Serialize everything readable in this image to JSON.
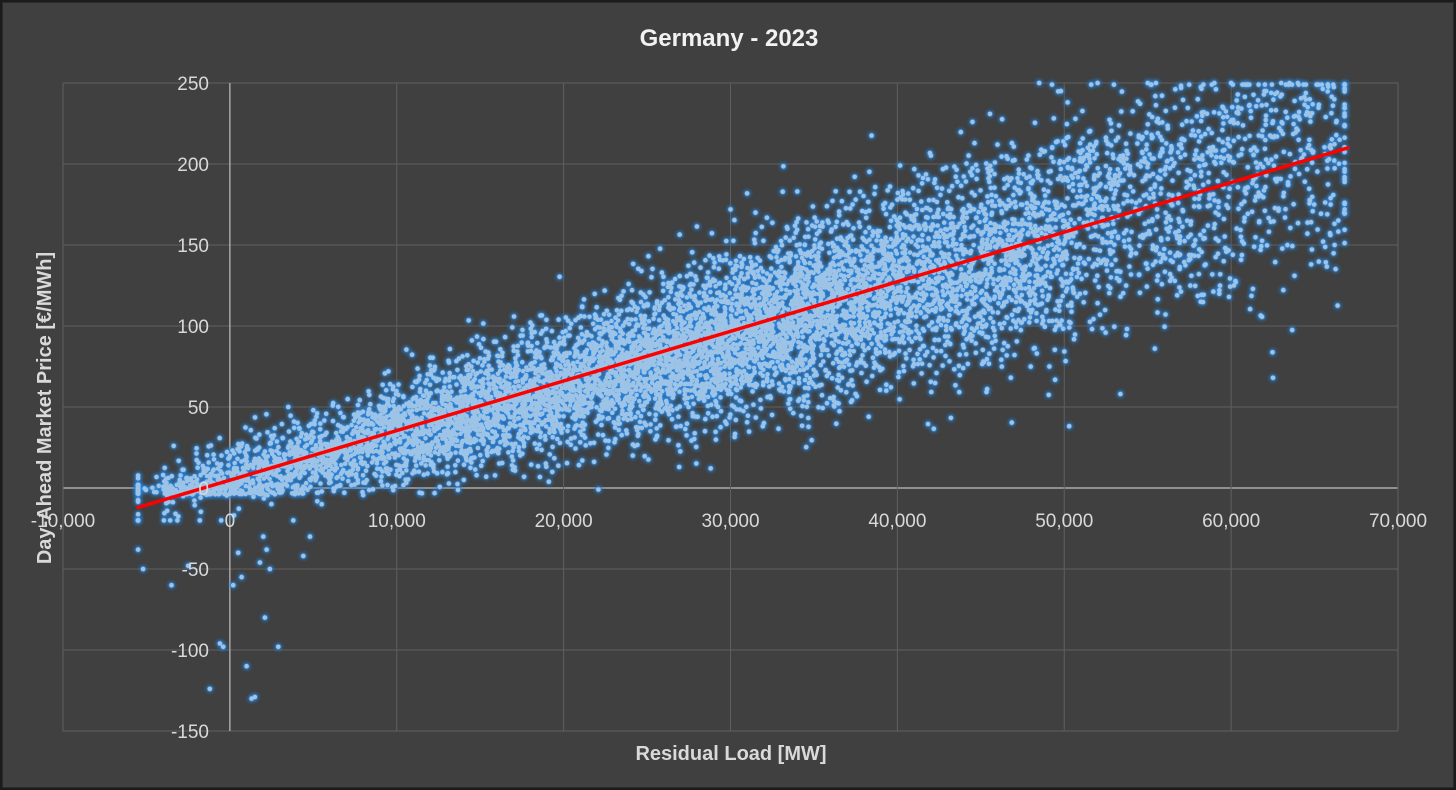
{
  "chart_data": {
    "type": "scatter",
    "title": "Germany - 2023",
    "xlabel": "Residual Load [MW]",
    "ylabel": "Day-Ahead Market Price [€/MWh]",
    "xlim": [
      -10000,
      70000
    ],
    "ylim": [
      -150,
      250
    ],
    "x_ticks": [
      -10000,
      0,
      10000,
      20000,
      30000,
      40000,
      50000,
      60000,
      70000
    ],
    "y_ticks": [
      -150,
      -100,
      -50,
      0,
      50,
      100,
      150,
      200,
      250
    ],
    "x_tick_labels": [
      "-10,000",
      "0",
      "10,000",
      "20,000",
      "30,000",
      "40,000",
      "50,000",
      "60,000",
      "70,000"
    ],
    "y_tick_labels": [
      "-150",
      "-100",
      "-50",
      "0",
      "50",
      "100",
      "150",
      "200",
      "250"
    ],
    "grid": true,
    "colors": {
      "background": "#404040",
      "points": "#9dc3e6",
      "point_glow": "#2e86de",
      "trendline": "#ff0000",
      "gridline": "#5f5f5f",
      "text": "#d9d9d9"
    },
    "series": [
      {
        "name": "Hourly observations",
        "kind": "scatter",
        "approx_count": 8760,
        "trend_model": {
          "slope_per_mw": 0.003,
          "intercept": 3.5,
          "range_x": [
            -5500,
            67000
          ]
        },
        "outliers": [
          {
            "x": -5500,
            "y": -38
          },
          {
            "x": -5200,
            "y": -50
          },
          {
            "x": -3500,
            "y": -60
          },
          {
            "x": -2500,
            "y": -48
          },
          {
            "x": -1800,
            "y": -20
          },
          {
            "x": -1200,
            "y": -124
          },
          {
            "x": -600,
            "y": -96
          },
          {
            "x": -400,
            "y": -98
          },
          {
            "x": 200,
            "y": -60
          },
          {
            "x": 500,
            "y": -40
          },
          {
            "x": 700,
            "y": -55
          },
          {
            "x": 1000,
            "y": -110
          },
          {
            "x": 1300,
            "y": -130
          },
          {
            "x": 1500,
            "y": -129
          },
          {
            "x": 1800,
            "y": -46
          },
          {
            "x": 2000,
            "y": -30
          },
          {
            "x": 2200,
            "y": -38
          },
          {
            "x": 2400,
            "y": -50
          },
          {
            "x": 2100,
            "y": -80
          },
          {
            "x": 2900,
            "y": -98
          },
          {
            "x": 4400,
            "y": -42
          },
          {
            "x": 4800,
            "y": -30
          },
          {
            "x": 3800,
            "y": -20
          },
          {
            "x": 5500,
            "y": -10
          },
          {
            "x": -4000,
            "y": 8
          },
          {
            "x": -3000,
            "y": 5
          },
          {
            "x": -2800,
            "y": -5
          },
          {
            "x": -1500,
            "y": 12
          },
          {
            "x": -500,
            "y": 20
          },
          {
            "x": 1500,
            "y": 18
          },
          {
            "x": 3500,
            "y": 50
          },
          {
            "x": 5000,
            "y": 48
          },
          {
            "x": 25500,
            "y": 30
          },
          {
            "x": 25200,
            "y": 35
          },
          {
            "x": 48500,
            "y": 250
          },
          {
            "x": 49800,
            "y": 245
          },
          {
            "x": 50200,
            "y": 238
          },
          {
            "x": 51500,
            "y": 220
          },
          {
            "x": 52000,
            "y": 250
          },
          {
            "x": 55000,
            "y": 250
          },
          {
            "x": 55500,
            "y": 250
          },
          {
            "x": 57000,
            "y": 247
          },
          {
            "x": 58000,
            "y": 240
          },
          {
            "x": 59000,
            "y": 250
          },
          {
            "x": 60000,
            "y": 250
          },
          {
            "x": 62000,
            "y": 245
          },
          {
            "x": 63000,
            "y": 250
          },
          {
            "x": 63500,
            "y": 250
          },
          {
            "x": 64000,
            "y": 250
          },
          {
            "x": 65800,
            "y": 249
          },
          {
            "x": 66100,
            "y": 236
          },
          {
            "x": 66200,
            "y": 150
          },
          {
            "x": 66500,
            "y": 215
          },
          {
            "x": 64800,
            "y": 138
          },
          {
            "x": 63800,
            "y": 131
          },
          {
            "x": 44500,
            "y": 226
          },
          {
            "x": 46000,
            "y": 212
          },
          {
            "x": 34000,
            "y": 183
          },
          {
            "x": 31500,
            "y": 170
          },
          {
            "x": 30000,
            "y": 172
          },
          {
            "x": 37500,
            "y": 178
          },
          {
            "x": 40000,
            "y": 178
          }
        ]
      },
      {
        "name": "Linear trendline",
        "kind": "line",
        "x": [
          -5500,
          67000
        ],
        "y": [
          -12,
          210
        ]
      }
    ]
  }
}
